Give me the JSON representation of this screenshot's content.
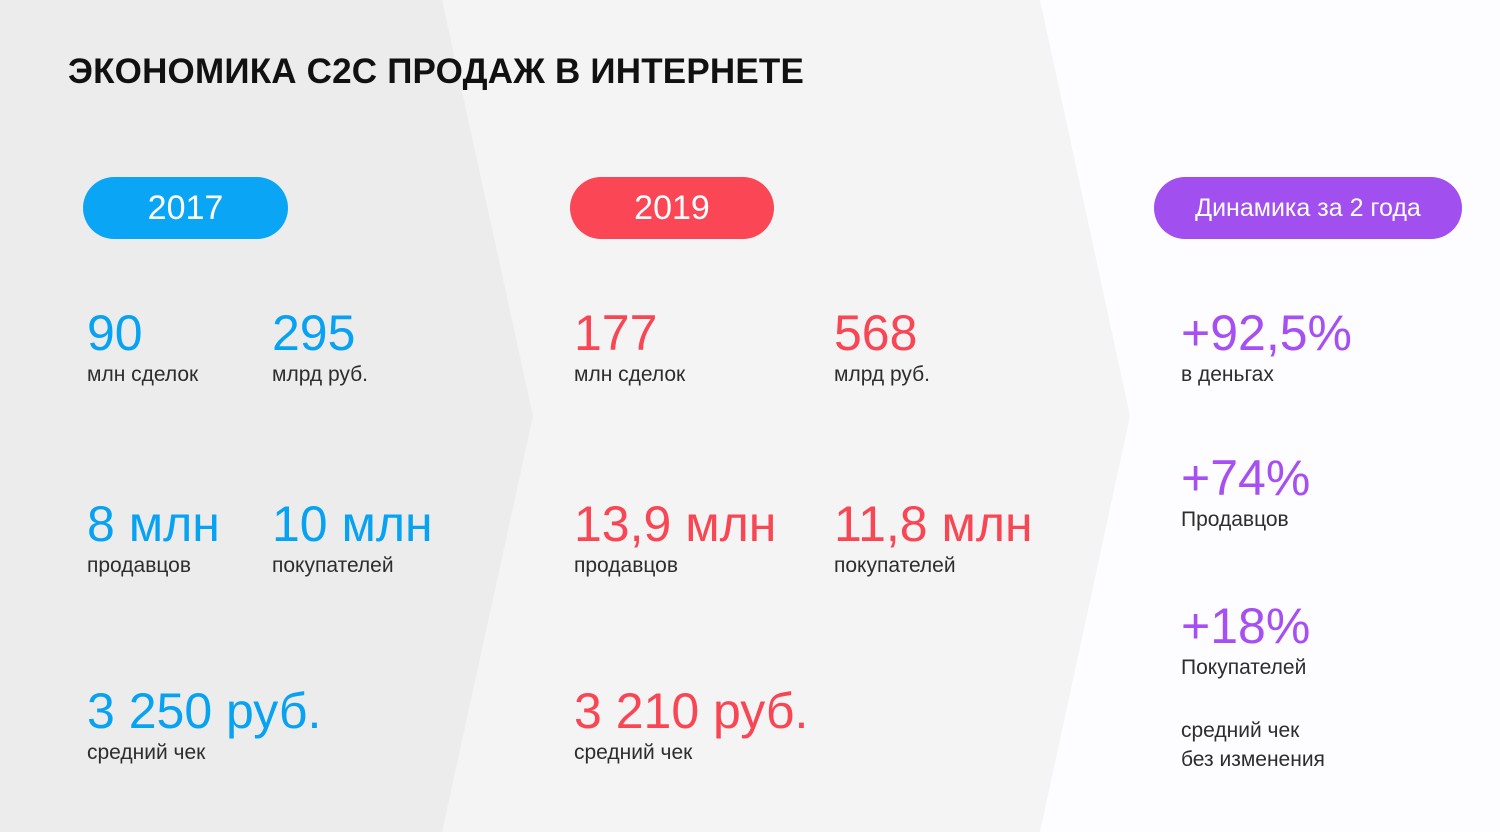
{
  "title": "ЭКОНОМИКА C2C ПРОДАЖ В ИНТЕРНЕТЕ",
  "colors": {
    "blue": "#08a2f2",
    "red": "#f94654",
    "purple": "#a64ff2",
    "panel_left": "#ececec",
    "panel_mid": "#f4f4f4",
    "panel_right": "#fdfcfe"
  },
  "col2017": {
    "badge": "2017",
    "deals": {
      "value": "90",
      "label": "млн сделок"
    },
    "volume": {
      "value": "295",
      "label": "млрд руб."
    },
    "sellers": {
      "value": "8 млн",
      "label": "продавцов"
    },
    "buyers": {
      "value": "10 млн",
      "label": "покупателей"
    },
    "avg_check": {
      "value": "3 250 руб.",
      "label": "средний чек"
    }
  },
  "col2019": {
    "badge": "2019",
    "deals": {
      "value": "177",
      "label": "млн сделок"
    },
    "volume": {
      "value": "568",
      "label": "млрд руб."
    },
    "sellers": {
      "value": "13,9 млн",
      "label": "продавцов"
    },
    "buyers": {
      "value": "11,8 млн",
      "label": "покупателей"
    },
    "avg_check": {
      "value": "3 210 руб.",
      "label": "средний чек"
    }
  },
  "dynamics": {
    "badge": "Динамика за 2 года",
    "money": {
      "value": "+92,5%",
      "label": "в деньгах"
    },
    "sellers": {
      "value": "+74%",
      "label": "Продавцов"
    },
    "buyers": {
      "value": "+18%",
      "label": "Покупателей"
    },
    "note_line1": "средний чек",
    "note_line2": "без изменения"
  }
}
